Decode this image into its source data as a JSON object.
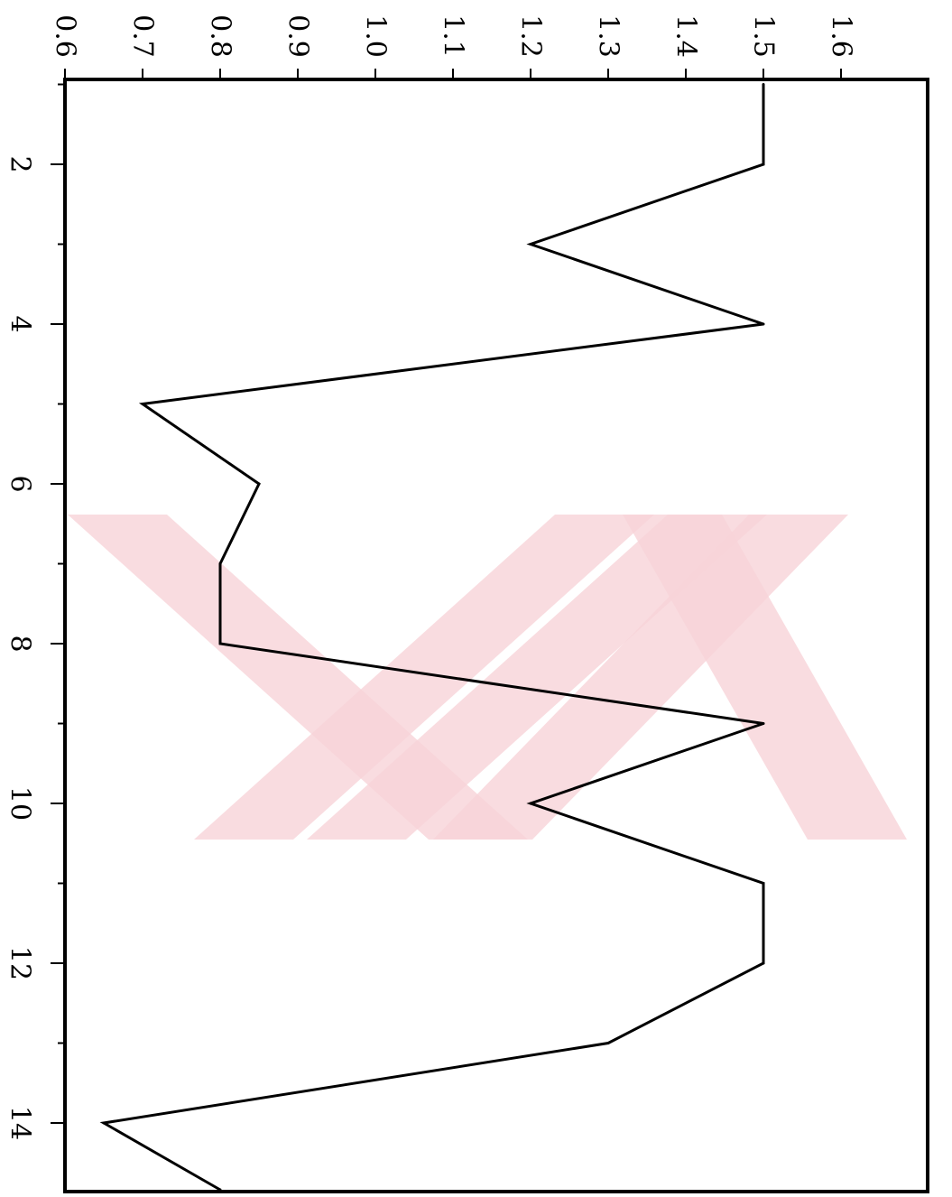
{
  "chart_data": {
    "type": "line",
    "orientation": "rotated-90-clockwise",
    "x": [
      1,
      2,
      3,
      4,
      5,
      6,
      7,
      8,
      9,
      10,
      11,
      12,
      13,
      14,
      15
    ],
    "series": [
      {
        "values": [
          1.5,
          1.5,
          1.2,
          1.5,
          0.7,
          0.85,
          0.8,
          0.8,
          1.5,
          1.2,
          1.5,
          1.5,
          1.3,
          0.65,
          0.8
        ]
      }
    ],
    "x_tick_labels": [
      "2",
      "4",
      "6",
      "8",
      "10",
      "12",
      "14"
    ],
    "y_tick_labels": [
      "0.6",
      "0.7",
      "0.8",
      "0.9",
      "1.0",
      "1.1",
      "1.2",
      "1.3",
      "1.4",
      "1.5",
      "1.6"
    ],
    "xlim": [
      1,
      15.7
    ],
    "ylim": [
      0.6,
      1.6
    ],
    "grid": false,
    "line_color": "#000000",
    "watermark_color": "#f7d3d8"
  }
}
